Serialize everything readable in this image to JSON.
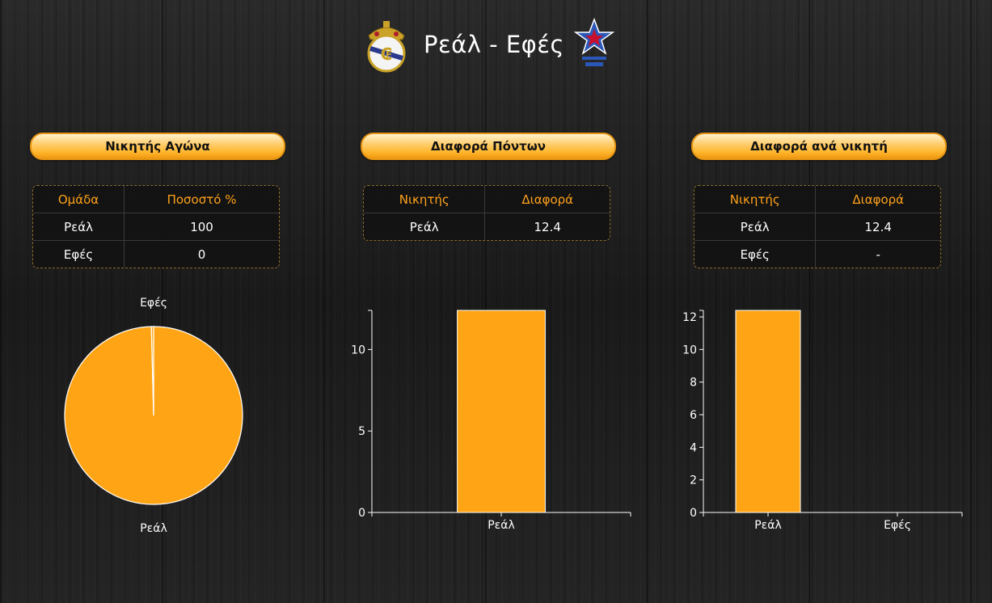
{
  "header": {
    "title": "Ρεάλ - Εφές",
    "logo_left": "real-madrid-crest",
    "logo_right": "efes-star-logo"
  },
  "colors": {
    "accent": "#FFA515",
    "header_text": "#FFA21A",
    "background": "#1c1c1c"
  },
  "panels": [
    {
      "button_label": "Νικητής Αγώνα",
      "table": {
        "headers": [
          "Ομάδα",
          "Ποσοστό %"
        ],
        "rows": [
          [
            "Ρεάλ",
            "100"
          ],
          [
            "Εφές",
            "0"
          ]
        ]
      }
    },
    {
      "button_label": "Διαφορά Πόντων",
      "table": {
        "headers": [
          "Νικητής",
          "Διαφορά"
        ],
        "rows": [
          [
            "Ρεάλ",
            "12.4"
          ]
        ]
      }
    },
    {
      "button_label": "Διαφορά ανά νικητή",
      "table": {
        "headers": [
          "Νικητής",
          "Διαφορά"
        ],
        "rows": [
          [
            "Ρεάλ",
            "12.4"
          ],
          [
            "Εφές",
            "-"
          ]
        ]
      }
    }
  ],
  "chart_data": [
    {
      "type": "pie",
      "labels": [
        "Ρεάλ",
        "Εφές"
      ],
      "values": [
        99.6,
        0.4
      ],
      "colors": [
        "#FFA515",
        "#FFA515"
      ]
    },
    {
      "type": "bar",
      "categories": [
        "Ρεάλ"
      ],
      "values": [
        12.4
      ],
      "ylim": [
        0,
        12.4
      ],
      "yticks": [
        0,
        5,
        10
      ],
      "color": "#FFA515"
    },
    {
      "type": "bar",
      "categories": [
        "Ρεάλ",
        "Εφές"
      ],
      "values": [
        12.4,
        0
      ],
      "ylim": [
        0,
        12.4
      ],
      "yticks": [
        0,
        2,
        4,
        6,
        8,
        10,
        12
      ],
      "color": "#FFA515"
    }
  ]
}
